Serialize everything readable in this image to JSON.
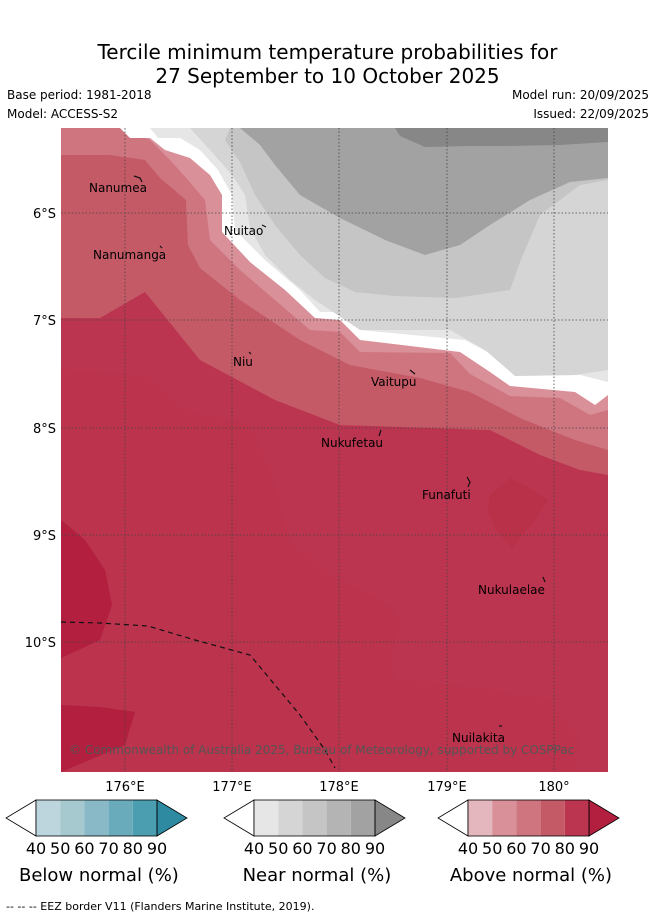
{
  "title_line1": "Tercile minimum temperature probabilities for",
  "title_line2": "27 September to 10 October 2025",
  "base_period": "Base period: 1981-2018",
  "model": "Model: ACCESS-S2",
  "model_run": "Model run: 20/09/2025",
  "issued": "Issued: 22/09/2025",
  "lat_ticks": [
    "6°S",
    "7°S",
    "8°S",
    "9°S",
    "10°S"
  ],
  "lon_ticks": [
    "176°E",
    "177°E",
    "178°E",
    "179°E",
    "180°"
  ],
  "islands": [
    {
      "name": "Nanumea"
    },
    {
      "name": "Nuitao"
    },
    {
      "name": "Nanumanga"
    },
    {
      "name": "Niu"
    },
    {
      "name": "Vaitupu"
    },
    {
      "name": "Nukufetau"
    },
    {
      "name": "Funafuti"
    },
    {
      "name": "Nukulaelae"
    },
    {
      "name": "Nuilakita"
    }
  ],
  "copyright": "© Commonwealth of Australia 2025, Bureau of Meteorology, supported by COSPPac",
  "colorbars": [
    {
      "title": "Below normal (%)",
      "ticks": [
        "40",
        "50",
        "60",
        "70",
        "80",
        "90"
      ],
      "colors": [
        "#bdd6de",
        "#a5c9cf",
        "#89b9c6",
        "#6aabbb",
        "#4a9eb0",
        "#2e8aa1"
      ]
    },
    {
      "title": "Near normal (%)",
      "ticks": [
        "40",
        "50",
        "60",
        "70",
        "80",
        "90"
      ],
      "colors": [
        "#e6e6e6",
        "#d5d5d5",
        "#c5c5c5",
        "#b4b4b4",
        "#a2a2a2",
        "#878787"
      ]
    },
    {
      "title": "Above normal (%)",
      "ticks": [
        "40",
        "50",
        "60",
        "70",
        "80",
        "90"
      ],
      "colors": [
        "#e4b6be",
        "#d99099",
        "#cf7580",
        "#c55a67",
        "#bc3550",
        "#b21f3f"
      ]
    }
  ],
  "footnote": "-- -- -- EEZ border V11 (Flanders Marine Institute, 2019)."
}
